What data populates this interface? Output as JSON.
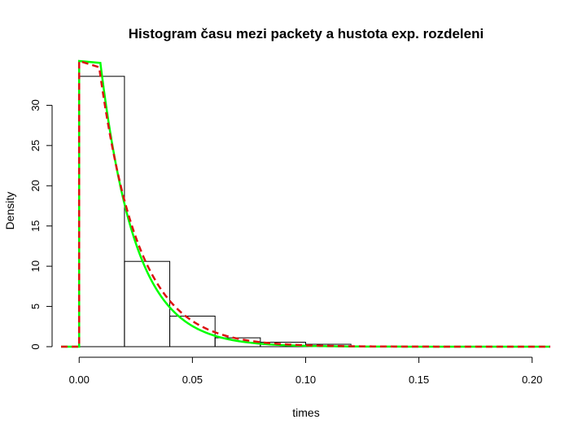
{
  "chart_data": {
    "type": "bar",
    "title": "Histogram času mezi packety a hustota exp. rozdeleni",
    "xlabel": "times",
    "ylabel": "Density",
    "xlim": [
      -0.008,
      0.208
    ],
    "ylim": [
      0,
      35.3
    ],
    "x_ticks": [
      "0.00",
      "0.05",
      "0.10",
      "0.15",
      "0.20"
    ],
    "y_ticks": [
      "0",
      "5",
      "10",
      "15",
      "20",
      "25",
      "30"
    ],
    "bins": [
      {
        "start": 0.0,
        "end": 0.02,
        "density": 33.6
      },
      {
        "start": 0.02,
        "end": 0.04,
        "density": 10.6
      },
      {
        "start": 0.04,
        "end": 0.06,
        "density": 3.8
      },
      {
        "start": 0.06,
        "end": 0.08,
        "density": 1.1
      },
      {
        "start": 0.08,
        "end": 0.1,
        "density": 0.55
      },
      {
        "start": 0.1,
        "end": 0.12,
        "density": 0.3
      }
    ],
    "series": [
      {
        "color": "#00ff00",
        "style": "solid",
        "rate": 64.5
      },
      {
        "color": "#dd1111",
        "style": "dashed",
        "rate": 58.0
      }
    ]
  }
}
